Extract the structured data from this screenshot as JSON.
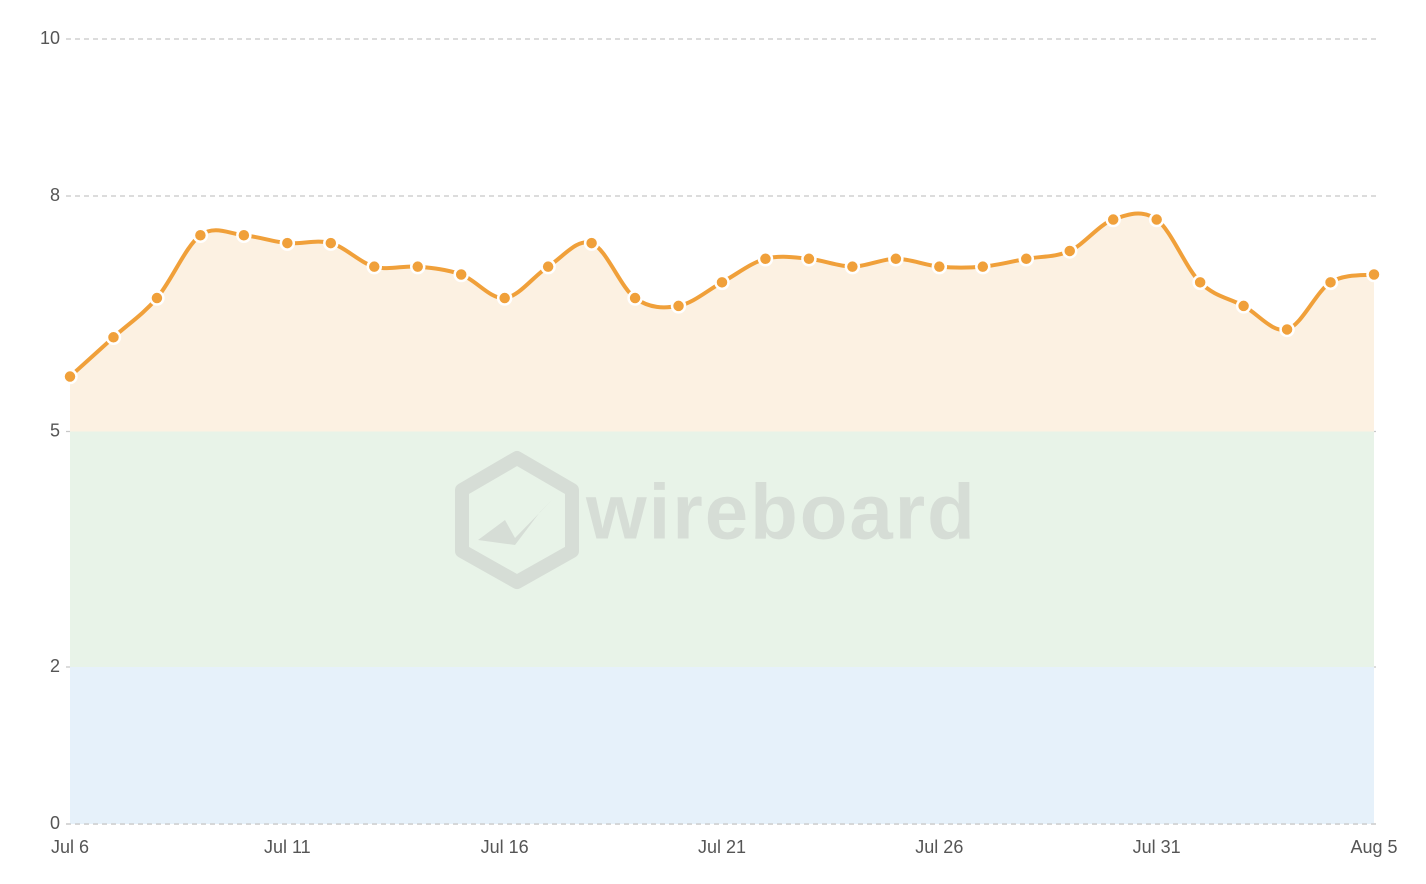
{
  "chart_data": {
    "type": "line",
    "watermark": "wireboard",
    "categories": [
      "Jul 6",
      null,
      null,
      null,
      null,
      "Jul 11",
      null,
      null,
      null,
      null,
      "Jul 16",
      null,
      null,
      null,
      null,
      "Jul 21",
      null,
      null,
      null,
      null,
      "Jul 26",
      null,
      null,
      null,
      null,
      "Jul 31",
      null,
      null,
      null,
      null,
      "Aug 5"
    ],
    "series": [
      {
        "color": "#f0a03a",
        "values": [
          5.7,
          6.2,
          6.7,
          7.5,
          7.5,
          7.4,
          7.4,
          7.1,
          7.1,
          7.0,
          6.7,
          7.1,
          7.4,
          6.7,
          6.6,
          6.9,
          7.2,
          7.2,
          7.1,
          7.2,
          7.1,
          7.1,
          7.2,
          7.3,
          7.7,
          7.7,
          6.9,
          6.6,
          6.3,
          6.9,
          7.0
        ]
      }
    ],
    "ylim": [
      0,
      10
    ],
    "yticks": [
      0,
      2,
      5,
      8,
      10
    ],
    "grid": true,
    "area_color": "#fcf1e2",
    "bands": [
      {
        "range": [
          2,
          5
        ],
        "color": "#e8f3e8"
      },
      {
        "range": [
          0,
          2
        ],
        "color": "#e6f1fa"
      }
    ]
  }
}
